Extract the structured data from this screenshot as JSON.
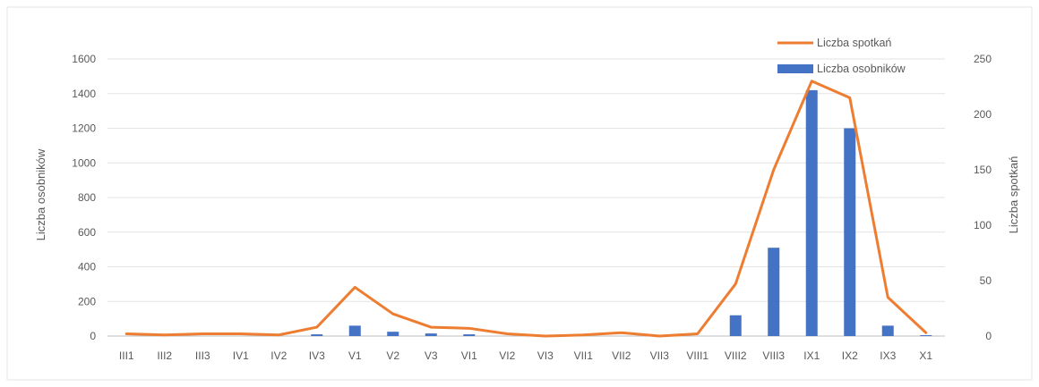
{
  "chart_data": {
    "type": "bar",
    "categories": [
      "III1",
      "III2",
      "III3",
      "IV1",
      "IV2",
      "IV3",
      "V1",
      "V2",
      "V3",
      "VI1",
      "VI2",
      "VI3",
      "VII1",
      "VII2",
      "VII3",
      "VIII1",
      "VIII2",
      "VIII3",
      "IX1",
      "IX2",
      "IX3",
      "X1"
    ],
    "series": [
      {
        "name": "Liczba osobników",
        "type": "bar",
        "axis": "left",
        "color": "#4472C4",
        "values": [
          0,
          0,
          0,
          0,
          0,
          10,
          60,
          25,
          15,
          10,
          0,
          0,
          0,
          0,
          0,
          0,
          120,
          510,
          1420,
          1200,
          60,
          5
        ]
      },
      {
        "name": "Liczba spotkań",
        "type": "line",
        "axis": "right",
        "color": "#ED7D31",
        "values": [
          2,
          1,
          2,
          2,
          1,
          8,
          44,
          20,
          8,
          7,
          2,
          0,
          1,
          3,
          0,
          2,
          47,
          150,
          230,
          215,
          35,
          3
        ]
      }
    ],
    "ylabel": "Liczba osobników",
    "y2label": "Liczba spotkań",
    "ylim": [
      0,
      1600
    ],
    "y2lim": [
      0,
      250
    ],
    "yticks": [
      "0",
      "200",
      "400",
      "600",
      "800",
      "1000",
      "1200",
      "1400",
      "1600"
    ],
    "y2ticks": [
      "0",
      "50",
      "100",
      "150",
      "200",
      "250"
    ],
    "grid": true,
    "legend_position": "top-right"
  }
}
